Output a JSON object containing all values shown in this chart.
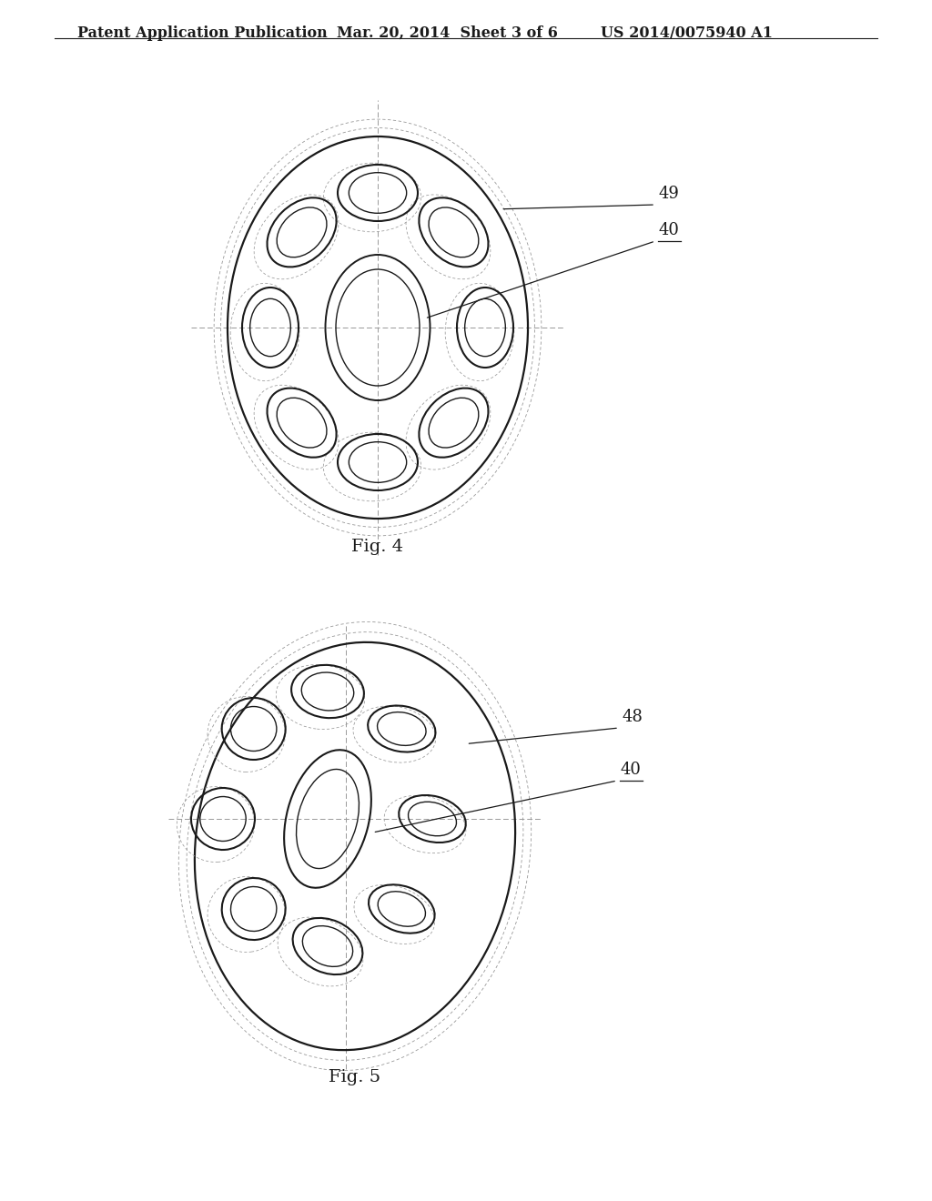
{
  "header_left": "Patent Application Publication",
  "header_mid": "Mar. 20, 2014  Sheet 3 of 6",
  "header_right": "US 2014/0075940 A1",
  "fig4_label": "Fig. 4",
  "fig5_label": "Fig. 5",
  "fig4_ref49": "49",
  "fig4_ref40": "40",
  "fig5_ref48": "48",
  "fig5_ref40": "40",
  "bg_color": "#ffffff",
  "line_color": "#1a1a1a",
  "dashed_color": "#999999"
}
